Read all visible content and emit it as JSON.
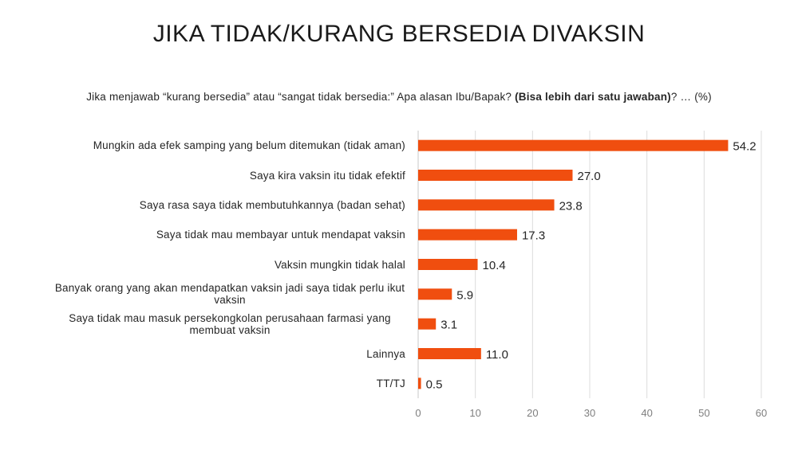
{
  "title": "JIKA TIDAK/KURANG BERSEDIA DIVAKSIN",
  "subtitle": {
    "main": "Jika menjawab “kurang bersedia” atau “sangat tidak bersedia:” Apa alasan Ibu/Bapak?",
    "bold": "(Bisa lebih dari satu jawaban)",
    "tail": "? … (%)"
  },
  "chart_data": {
    "type": "bar",
    "orientation": "horizontal",
    "categories": [
      "Mungkin ada efek samping yang belum ditemukan (tidak aman)",
      "Saya kira vaksin itu tidak efektif",
      "Saya rasa saya tidak membutuhkannya (badan sehat)",
      "Saya tidak mau membayar untuk mendapat vaksin",
      "Vaksin mungkin tidak halal",
      "Banyak orang yang akan mendapatkan vaksin jadi saya tidak perlu ikut vaksin",
      "Saya tidak mau masuk persekongkolan perusahaan farmasi yang membuat vaksin",
      "Lainnya",
      "TT/TJ"
    ],
    "values": [
      54.2,
      27.0,
      23.8,
      17.3,
      10.4,
      5.9,
      3.1,
      11.0,
      0.5
    ],
    "value_labels": [
      "54.2",
      "27.0",
      "23.8",
      "17.3",
      "10.4",
      "5.9",
      "3.1",
      "11.0",
      "0.5"
    ],
    "xlim": [
      0,
      60
    ],
    "x_ticks": [
      0,
      10,
      20,
      30,
      40,
      50,
      60
    ],
    "grid": true,
    "bar_color": "#f04e0f",
    "grid_color": "#dcdcdc"
  }
}
